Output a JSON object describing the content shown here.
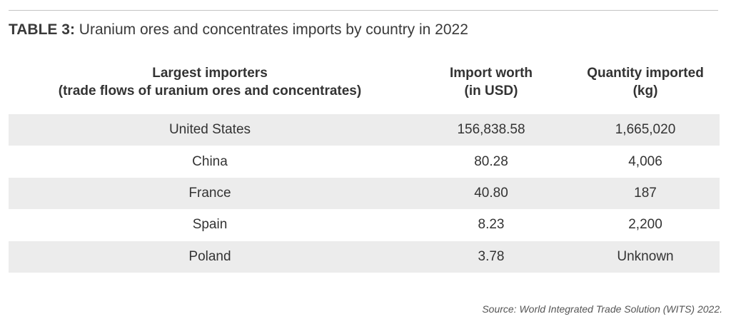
{
  "caption": {
    "label": "TABLE 3:",
    "text": " Uranium ores and concentrates imports by country in 2022"
  },
  "columns": [
    {
      "line1": "Largest importers",
      "line2": "(trade flows of uranium ores and concentrates)"
    },
    {
      "line1": "Import worth",
      "line2": "(in USD)"
    },
    {
      "line1": "Quantity imported",
      "line2": "(kg)"
    }
  ],
  "rows": [
    {
      "country": "United States",
      "worth": "156,838.58",
      "quantity": "1,665,020"
    },
    {
      "country": "China",
      "worth": "80.28",
      "quantity": "4,006"
    },
    {
      "country": "France",
      "worth": "40.80",
      "quantity": "187"
    },
    {
      "country": "Spain",
      "worth": "8.23",
      "quantity": "2,200"
    },
    {
      "country": "Poland",
      "worth": "3.78",
      "quantity": "Unknown"
    }
  ],
  "source": "Source: World Integrated Trade Solution (WITS) 2022."
}
